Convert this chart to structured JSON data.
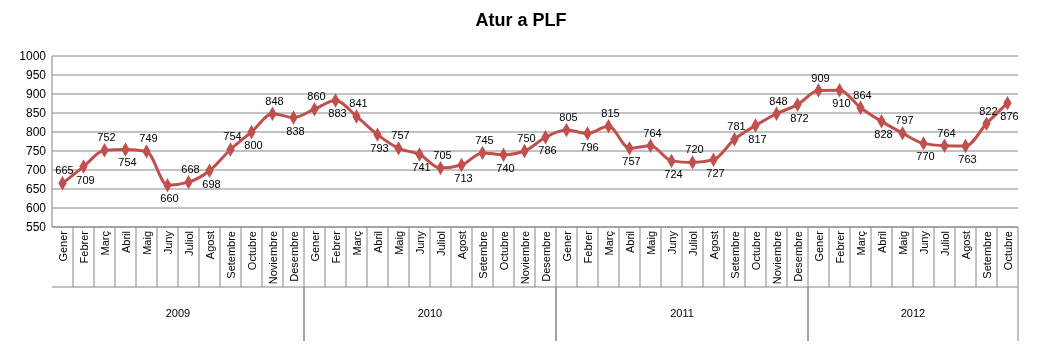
{
  "chart_data": {
    "type": "line",
    "title": "Atur a PLF",
    "categories": [
      "Gener",
      "Febrer",
      "Març",
      "Abril",
      "Maig",
      "Juny",
      "Juliol",
      "Agost",
      "Setembre",
      "Octubre",
      "Noviembre",
      "Desembre",
      "Gener",
      "Febrer",
      "Març",
      "Abril",
      "Maig",
      "Juny",
      "Juliol",
      "Agost",
      "Setembre",
      "Octubre",
      "Noviembre",
      "Desembre",
      "Gener",
      "Febrer",
      "Març",
      "Abril",
      "Maig",
      "Juny",
      "Juliol",
      "Agost",
      "Setembre",
      "Octubre",
      "Noviembre",
      "Desembre",
      "Gener",
      "Febrer",
      "Març",
      "Abril",
      "Maig",
      "Juny",
      "Juliol",
      "Agost",
      "Setembre",
      "Octubre"
    ],
    "series": [
      {
        "color": "#c0504d",
        "values": [
          665,
          709,
          752,
          754,
          749,
          660,
          668,
          698,
          754,
          800,
          848,
          838,
          860,
          883,
          841,
          793,
          757,
          741,
          705,
          713,
          745,
          740,
          750,
          786,
          805,
          796,
          815,
          757,
          764,
          724,
          720,
          727,
          781,
          817,
          848,
          872,
          909,
          910,
          864,
          828,
          797,
          770,
          764,
          763,
          822,
          876
        ]
      }
    ],
    "annotations": [
      "2009",
      "2010",
      "2011",
      "2012"
    ],
    "ylim": [
      550,
      1000
    ],
    "yticks": [
      550,
      600,
      650,
      700,
      750,
      800,
      850,
      900,
      950,
      1000
    ],
    "grid": "y",
    "marker": "diamond",
    "line_style": "solid",
    "data_labels": true
  }
}
